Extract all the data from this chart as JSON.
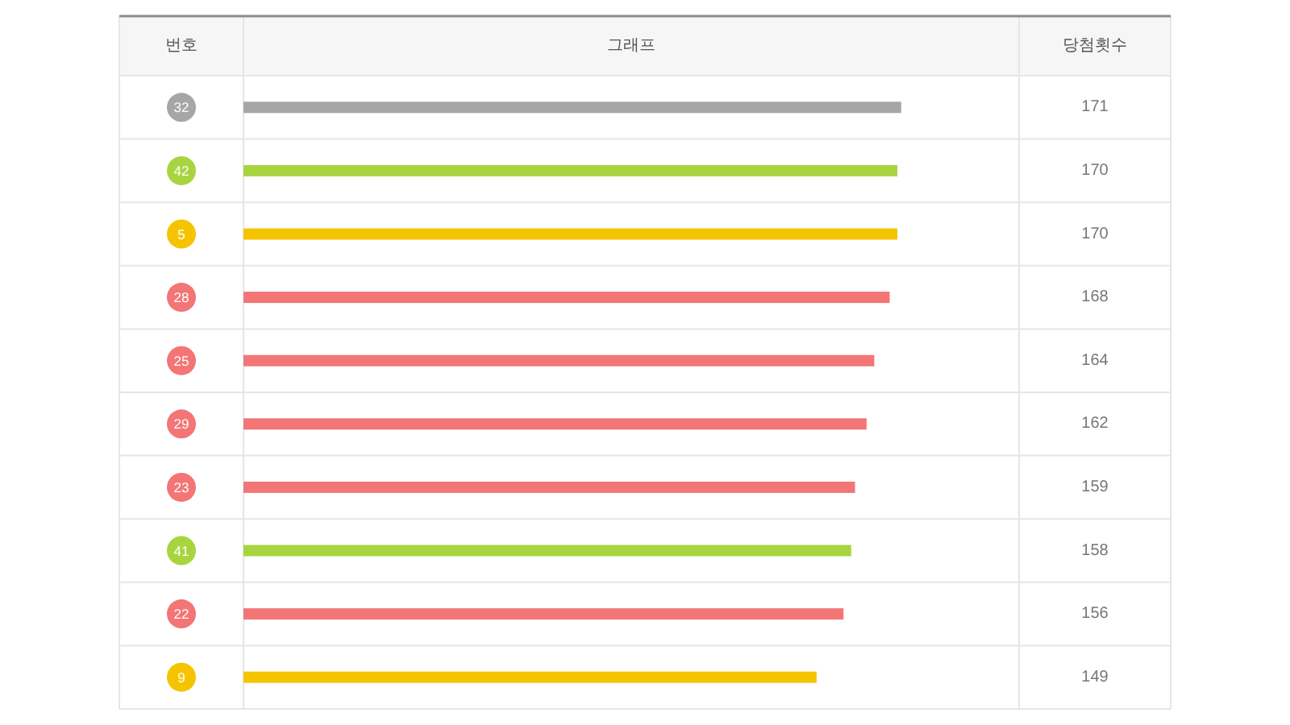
{
  "chart_data": {
    "type": "bar",
    "orientation": "horizontal",
    "ylabel": "번호",
    "xlabel": "그래프",
    "annotations": [
      "당첨횟수"
    ],
    "categories": [
      "32",
      "42",
      "5",
      "28",
      "25",
      "29",
      "23",
      "41",
      "22",
      "9"
    ],
    "values": [
      171,
      170,
      170,
      168,
      164,
      162,
      159,
      158,
      156,
      149
    ],
    "colors": [
      "#a6a6a6",
      "#a8d53f",
      "#f5c400",
      "#f37575",
      "#f37575",
      "#f37575",
      "#f37575",
      "#a8d53f",
      "#f37575",
      "#f5c400"
    ],
    "data_labels": true
  }
}
